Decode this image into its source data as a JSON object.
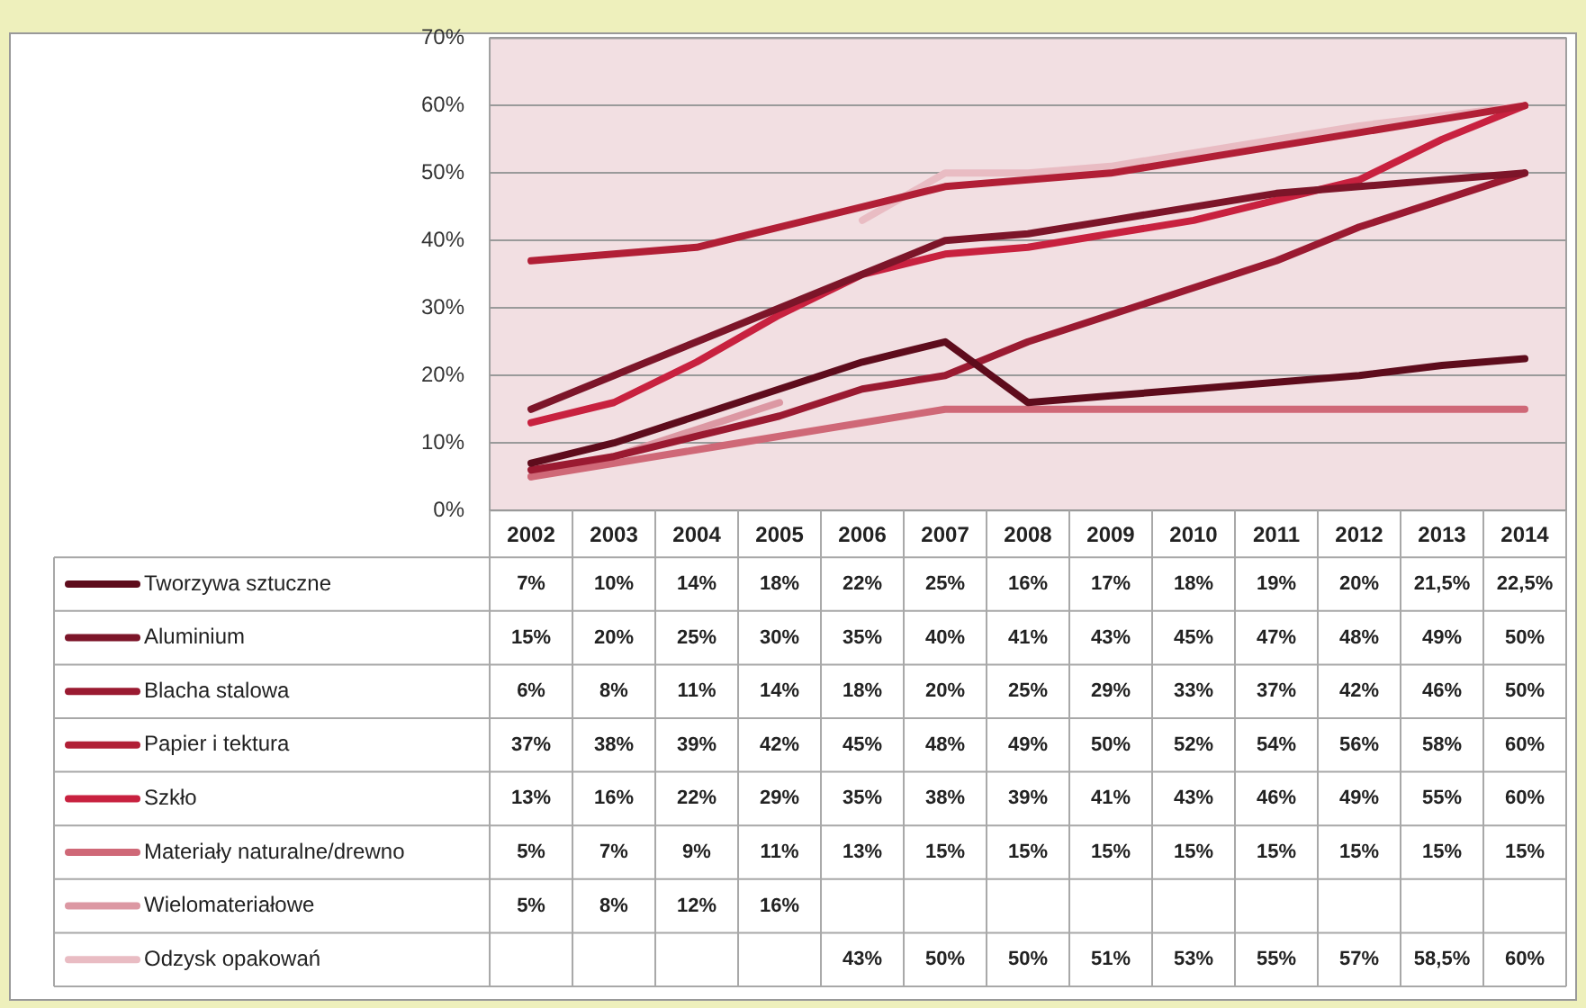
{
  "chart_data": {
    "type": "line",
    "categories": [
      "2002",
      "2003",
      "2004",
      "2005",
      "2006",
      "2007",
      "2008",
      "2009",
      "2010",
      "2011",
      "2012",
      "2013",
      "2014"
    ],
    "ylim": [
      0,
      70
    ],
    "yticks": [
      {
        "value": 0,
        "label": "0%"
      },
      {
        "value": 10,
        "label": "10%"
      },
      {
        "value": 20,
        "label": "20%"
      },
      {
        "value": 30,
        "label": "30%"
      },
      {
        "value": 40,
        "label": "40%"
      },
      {
        "value": 50,
        "label": "50%"
      },
      {
        "value": 60,
        "label": "60%"
      },
      {
        "value": 70,
        "label": "70%"
      }
    ],
    "grid": "y",
    "legend": "bottom",
    "marker": "none",
    "line_style": "solid",
    "series": [
      {
        "name": "Tworzywa sztuczne",
        "color": "#5e0c1c",
        "values": [
          7,
          10,
          14,
          18,
          22,
          25,
          16,
          17,
          18,
          19,
          20,
          21.5,
          22.5
        ],
        "value_labels": [
          "7%",
          "10%",
          "14%",
          "18%",
          "22%",
          "25%",
          "16%",
          "17%",
          "18%",
          "19%",
          "20%",
          "21,5%",
          "22,5%"
        ]
      },
      {
        "name": "Aluminium",
        "color": "#7c1529",
        "values": [
          15,
          20,
          25,
          30,
          35,
          40,
          41,
          43,
          45,
          47,
          48,
          49,
          50
        ],
        "value_labels": [
          "15%",
          "20%",
          "25%",
          "30%",
          "35%",
          "40%",
          "41%",
          "43%",
          "45%",
          "47%",
          "48%",
          "49%",
          "50%"
        ]
      },
      {
        "name": "Blacha stalowa",
        "color": "#9a1a31",
        "values": [
          6,
          8,
          11,
          14,
          18,
          20,
          25,
          29,
          33,
          37,
          42,
          46,
          50
        ],
        "value_labels": [
          "6%",
          "8%",
          "11%",
          "14%",
          "18%",
          "20%",
          "25%",
          "29%",
          "33%",
          "37%",
          "42%",
          "46%",
          "50%"
        ]
      },
      {
        "name": "Papier i tektura",
        "color": "#b11f36",
        "values": [
          37,
          38,
          39,
          42,
          45,
          48,
          49,
          50,
          52,
          54,
          56,
          58,
          60
        ],
        "value_labels": [
          "37%",
          "38%",
          "39%",
          "42%",
          "45%",
          "48%",
          "49%",
          "50%",
          "52%",
          "54%",
          "56%",
          "58%",
          "60%"
        ]
      },
      {
        "name": "Szkło",
        "color": "#c8213f",
        "values": [
          13,
          16,
          22,
          29,
          35,
          38,
          39,
          41,
          43,
          46,
          49,
          55,
          60
        ],
        "value_labels": [
          "13%",
          "16%",
          "22%",
          "29%",
          "35%",
          "38%",
          "39%",
          "41%",
          "43%",
          "46%",
          "49%",
          "55%",
          "60%"
        ]
      },
      {
        "name": "Materiały naturalne/drewno",
        "color": "#cf6877",
        "values": [
          5,
          7,
          9,
          11,
          13,
          15,
          15,
          15,
          15,
          15,
          15,
          15,
          15
        ],
        "value_labels": [
          "5%",
          "7%",
          "9%",
          "11%",
          "13%",
          "15%",
          "15%",
          "15%",
          "15%",
          "15%",
          "15%",
          "15%",
          "15%"
        ]
      },
      {
        "name": "Wielomateriałowe",
        "color": "#dc98a3",
        "values": [
          5,
          8,
          12,
          16,
          null,
          null,
          null,
          null,
          null,
          null,
          null,
          null,
          null
        ],
        "value_labels": [
          "5%",
          "8%",
          "12%",
          "16%",
          null,
          null,
          null,
          null,
          null,
          null,
          null,
          null,
          null
        ]
      },
      {
        "name": "Odzysk opakowań",
        "color": "#e9bcc3",
        "values": [
          null,
          null,
          null,
          null,
          43,
          50,
          50,
          51,
          53,
          55,
          57,
          58.5,
          60
        ],
        "value_labels": [
          null,
          null,
          null,
          null,
          "43%",
          "50%",
          "50%",
          "51%",
          "53%",
          "55%",
          "57%",
          "58,5%",
          "60%"
        ]
      }
    ]
  }
}
